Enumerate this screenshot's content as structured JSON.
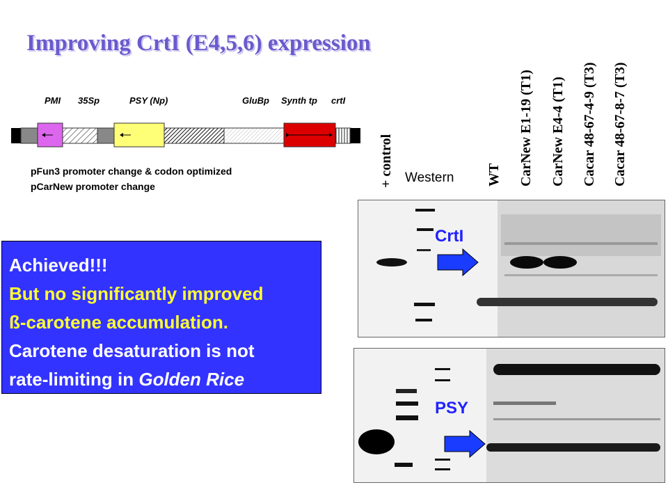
{
  "title": "Improving  CrtI  (E4,5,6) expression",
  "construct": {
    "labels": [
      "PMI",
      "35Sp",
      "PSY (Np)",
      "GluBp",
      "Synth tp",
      "crtI"
    ]
  },
  "notes": [
    "pFun3 promoter change & codon optimized",
    "pCarNew promoter change"
  ],
  "lanes": {
    "control": "+ control",
    "western": "Western",
    "wt": "WT",
    "l1": "CarNew E1-19 (T1)",
    "l2": "CarNew E4-4 (T1)",
    "l3": "Cacar 48-67-4-9 (T3)",
    "l4": "Cacar 48-67-8-7 (T3)"
  },
  "summary": {
    "line1": "Achieved!!!",
    "line2": "But no significantly improved",
    "line3": "ß-carotene accumulation.",
    "line4": "Carotene desaturation is not",
    "line5a": "rate-limiting in ",
    "line5b": "Golden Rice"
  },
  "blots": {
    "top_label": "CrtI",
    "bottom_label": "PSY"
  },
  "colors": {
    "title": "#6a5acd",
    "box": "#3333ff",
    "yellow_text": "#ffff33",
    "arrow": "#1a3cff",
    "pmi": "#dd66ee",
    "psy": "#ffff77",
    "crti": "#dd0000"
  }
}
